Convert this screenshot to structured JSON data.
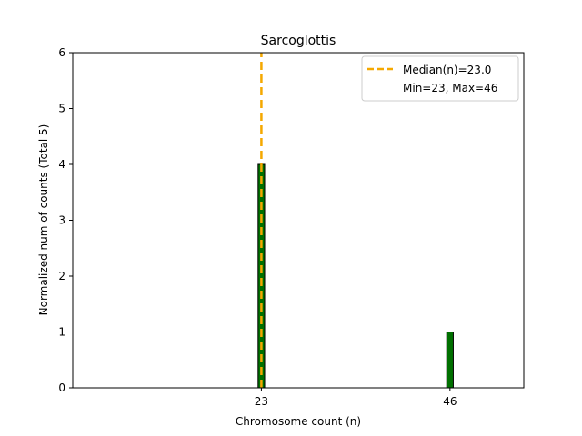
{
  "chart_data": {
    "type": "bar",
    "title": "Sarcoglottis",
    "xlabel": "Chromosome count (n)",
    "ylabel": "Normalized num of counts     (Total 5)",
    "xlim": [
      0,
      55
    ],
    "ylim": [
      0,
      6
    ],
    "xticks": [
      23,
      46
    ],
    "yticks": [
      0,
      1,
      2,
      3,
      4,
      5,
      6
    ],
    "bar_width": 0.8,
    "bars": [
      {
        "x": 23,
        "value": 4
      },
      {
        "x": 46,
        "value": 1
      }
    ],
    "median_line": {
      "x": 23.0,
      "label": "Median(n)=23.0",
      "color": "#f5a800"
    },
    "legend": {
      "placement": "top-right",
      "entries": [
        "Median(n)=23.0",
        "Min=23, Max=46"
      ]
    },
    "bar_color": "#007000",
    "bar_edge_color": "#000000"
  }
}
